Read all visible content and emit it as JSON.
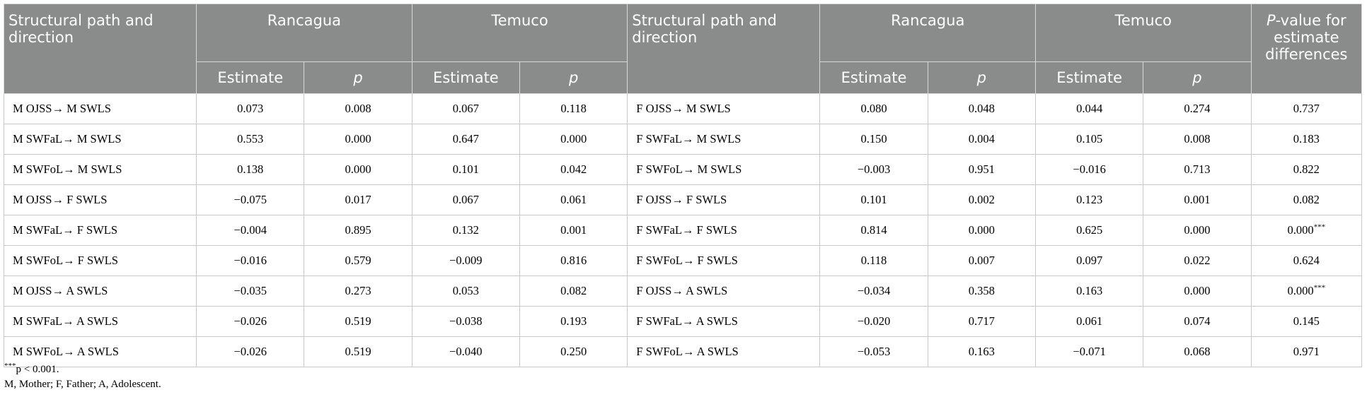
{
  "header": {
    "path_label": "Structural path and direction",
    "city1": "Rancagua",
    "city2": "Temuco",
    "estimate": "Estimate",
    "p": "p",
    "pvalue_italic": "P",
    "pvalue_rest": "-value for estimate differences"
  },
  "rows": [
    {
      "lpath": "M OJSS→ M SWLS",
      "lr_est": "0.073",
      "lr_p": "0.008",
      "lt_est": "0.067",
      "lt_p": "0.118",
      "rpath": "F OJSS→ M SWLS",
      "rr_est": "0.080",
      "rr_p": "0.048",
      "rt_est": "0.044",
      "rt_p": "0.274",
      "diff": "0.737",
      "sig": ""
    },
    {
      "lpath": "M SWFaL→ M SWLS",
      "lr_est": "0.553",
      "lr_p": "0.000",
      "lt_est": "0.647",
      "lt_p": "0.000",
      "rpath": "F SWFaL→ M SWLS",
      "rr_est": "0.150",
      "rr_p": "0.004",
      "rt_est": "0.105",
      "rt_p": "0.008",
      "diff": "0.183",
      "sig": ""
    },
    {
      "lpath": "M SWFoL→ M SWLS",
      "lr_est": "0.138",
      "lr_p": "0.000",
      "lt_est": "0.101",
      "lt_p": "0.042",
      "rpath": "F SWFoL→ M SWLS",
      "rr_est": "−0.003",
      "rr_p": "0.951",
      "rt_est": "−0.016",
      "rt_p": "0.713",
      "diff": "0.822",
      "sig": ""
    },
    {
      "lpath": "M OJSS→ F SWLS",
      "lr_est": "−0.075",
      "lr_p": "0.017",
      "lt_est": "0.067",
      "lt_p": "0.061",
      "rpath": "F OJSS→ F SWLS",
      "rr_est": "0.101",
      "rr_p": "0.002",
      "rt_est": "0.123",
      "rt_p": "0.001",
      "diff": "0.082",
      "sig": ""
    },
    {
      "lpath": "M SWFaL→ F SWLS",
      "lr_est": "−0.004",
      "lr_p": "0.895",
      "lt_est": "0.132",
      "lt_p": "0.001",
      "rpath": "F SWFaL→ F SWLS",
      "rr_est": "0.814",
      "rr_p": "0.000",
      "rt_est": "0.625",
      "rt_p": "0.000",
      "diff": "0.000",
      "sig": "***"
    },
    {
      "lpath": "M SWFoL→ F SWLS",
      "lr_est": "−0.016",
      "lr_p": "0.579",
      "lt_est": "−0.009",
      "lt_p": "0.816",
      "rpath": "F SWFoL→ F SWLS",
      "rr_est": "0.118",
      "rr_p": "0.007",
      "rt_est": "0.097",
      "rt_p": "0.022",
      "diff": "0.624",
      "sig": ""
    },
    {
      "lpath": "M OJSS→ A SWLS",
      "lr_est": "−0.035",
      "lr_p": "0.273",
      "lt_est": "0.053",
      "lt_p": "0.082",
      "rpath": "F OJSS→ A SWLS",
      "rr_est": "−0.034",
      "rr_p": "0.358",
      "rt_est": "0.163",
      "rt_p": "0.000",
      "diff": "0.000",
      "sig": "***"
    },
    {
      "lpath": "M SWFaL→ A SWLS",
      "lr_est": "−0.026",
      "lr_p": "0.519",
      "lt_est": "−0.038",
      "lt_p": "0.193",
      "rpath": "F SWFaL→ A SWLS",
      "rr_est": "−0.020",
      "rr_p": "0.717",
      "rt_est": "0.061",
      "rt_p": "0.074",
      "diff": "0.145",
      "sig": ""
    },
    {
      "lpath": "M SWFoL→ A SWLS",
      "lr_est": "−0.026",
      "lr_p": "0.519",
      "lt_est": "−0.040",
      "lt_p": "0.250",
      "rpath": "F SWFoL→ A SWLS",
      "rr_est": "−0.053",
      "rr_p": "0.163",
      "rt_est": "−0.071",
      "rt_p": "0.068",
      "diff": "0.971",
      "sig": ""
    }
  ],
  "notes": {
    "sig_mark": "***",
    "sig_text": "p < 0.001.",
    "abbrev": "M, Mother; F, Father; A, Adolescent."
  }
}
